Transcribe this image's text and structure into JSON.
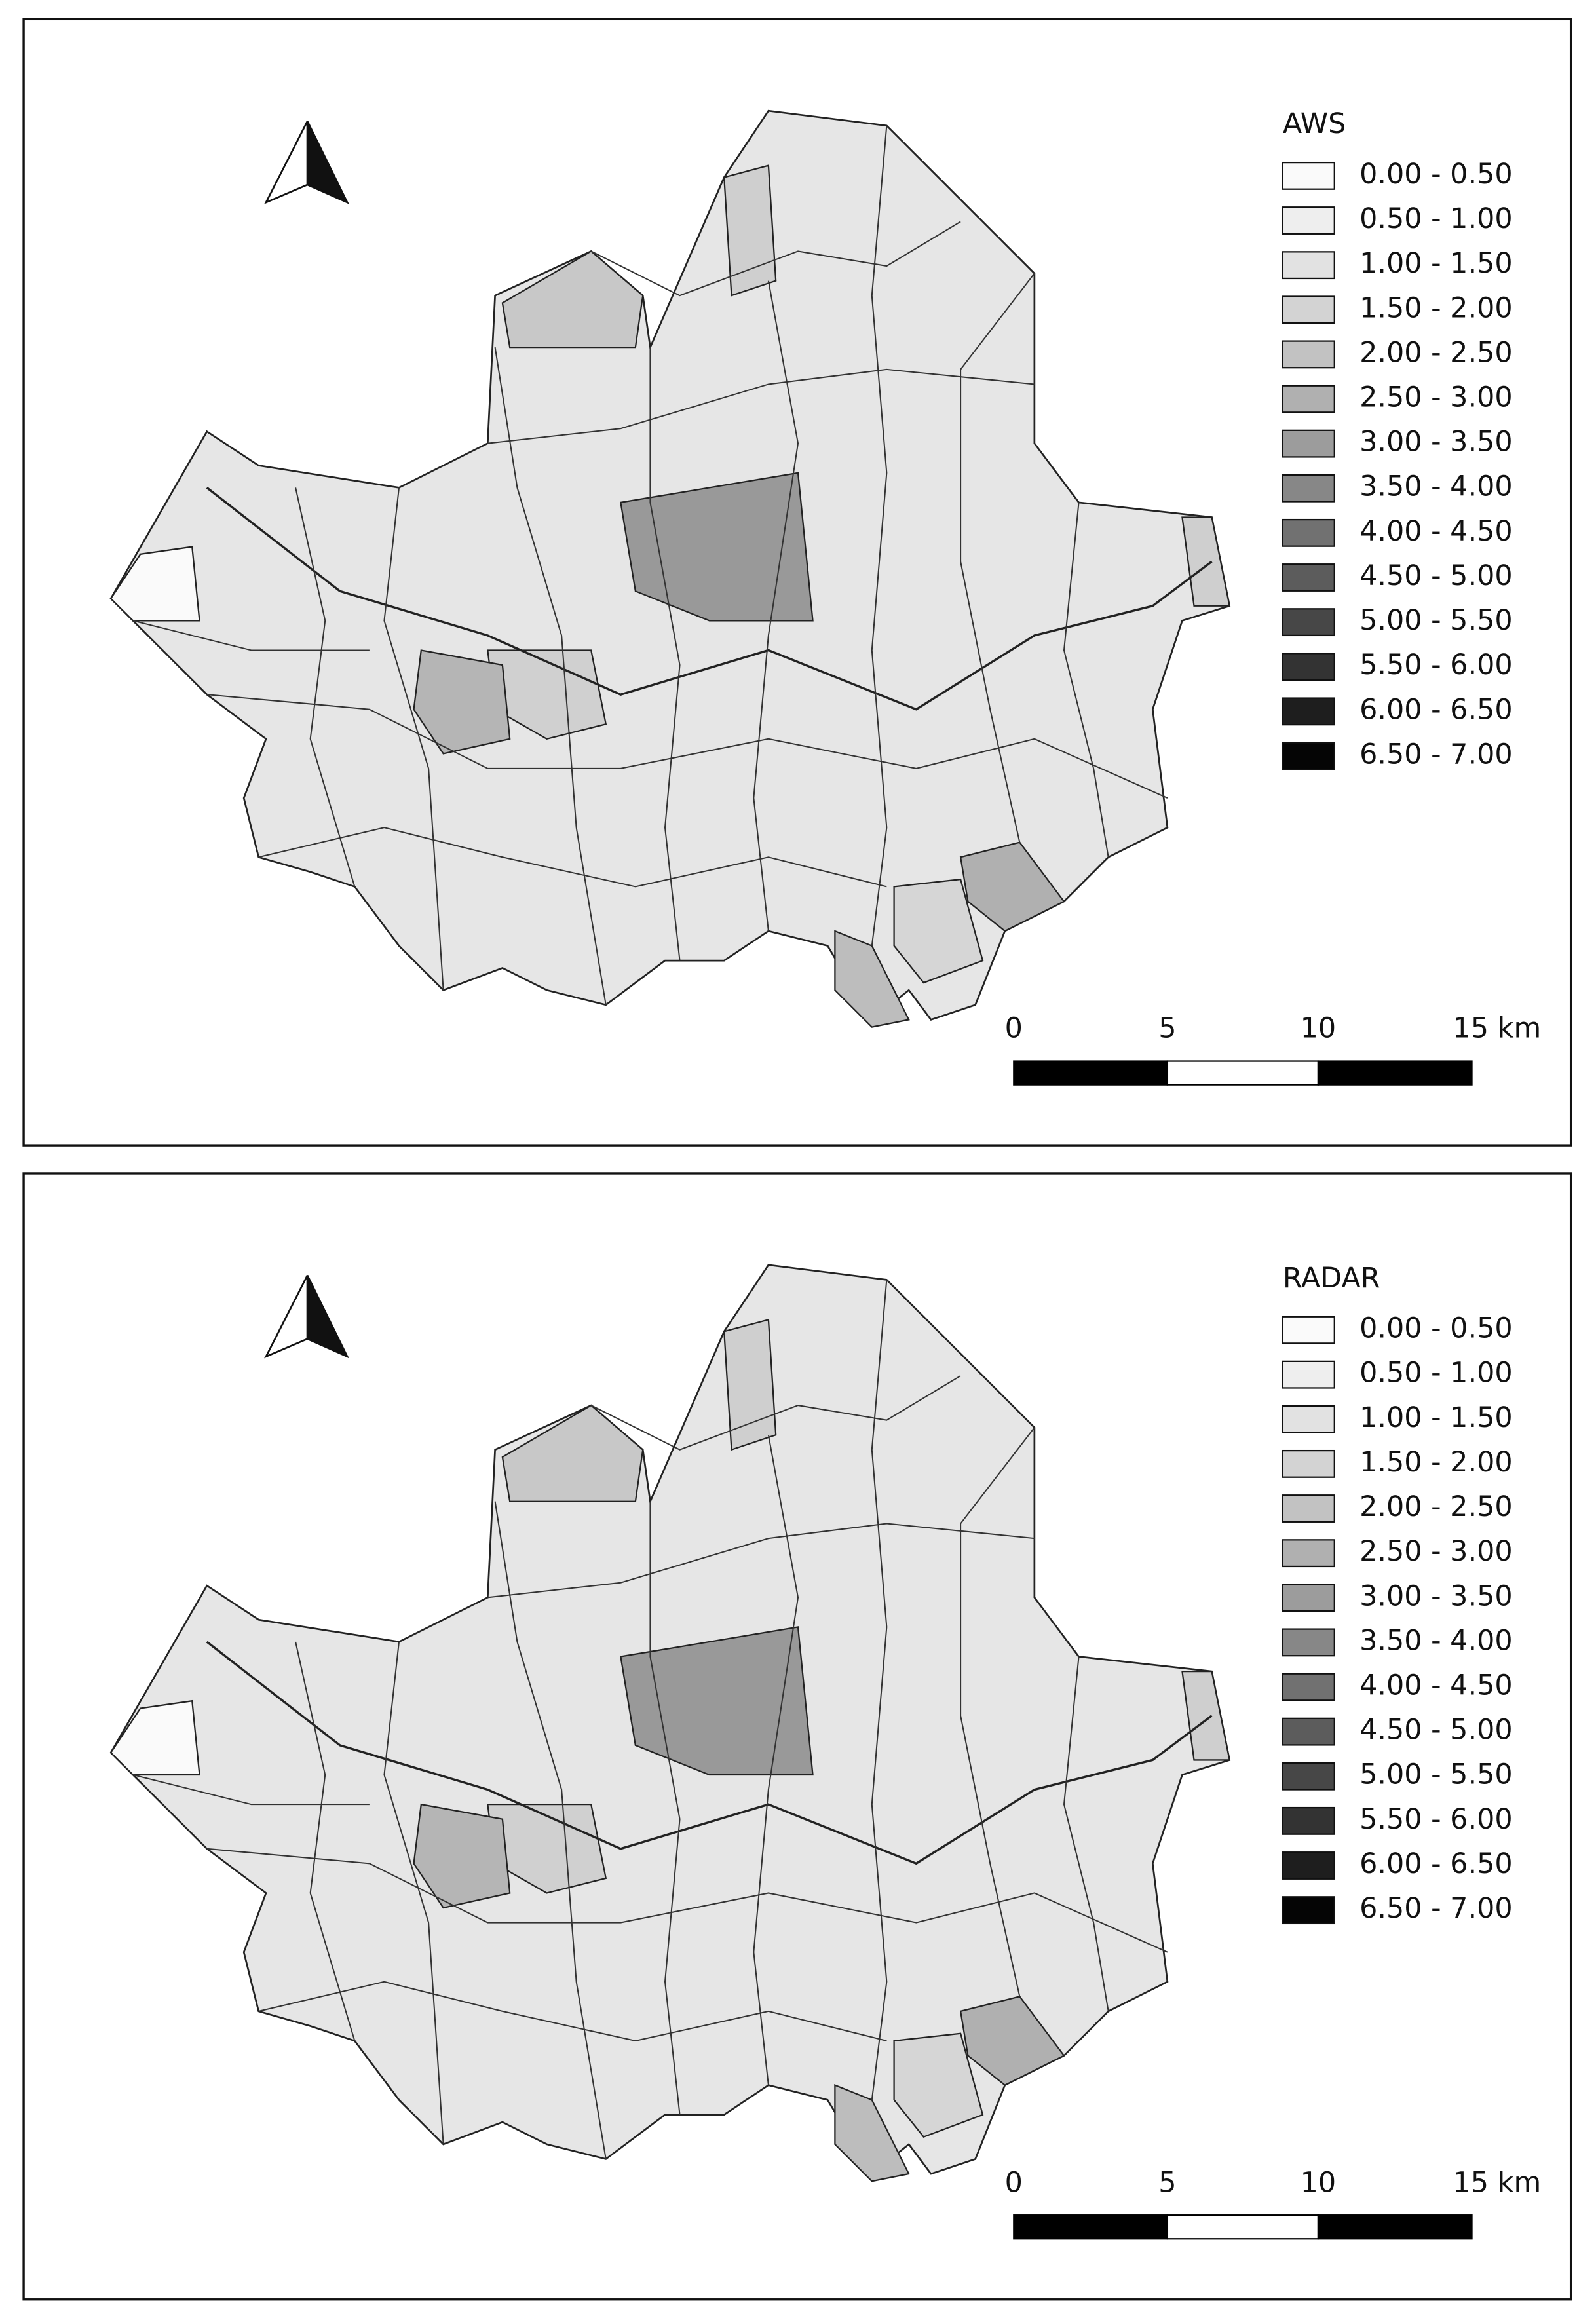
{
  "panels": [
    {
      "legend": {
        "title": "AWS",
        "labels": [
          "0.00 - 0.50",
          "0.50 - 1.00",
          "1.00 - 1.50",
          "1.50 - 2.00",
          "2.00 - 2.50",
          "2.50 - 3.00",
          "3.00 - 3.50",
          "3.50 - 4.00",
          "4.00 - 4.50",
          "4.50 - 5.00",
          "5.00 - 5.50",
          "5.50 - 6.00",
          "6.00 - 6.50",
          "6.50 - 7.00"
        ],
        "colors": [
          "#fafafa",
          "#eeeeee",
          "#e2e2e2",
          "#d3d3d3",
          "#c2c2c2",
          "#b0b0b0",
          "#9c9c9c",
          "#878787",
          "#717171",
          "#5c5c5c",
          "#474747",
          "#333333",
          "#1e1e1e",
          "#050505"
        ]
      },
      "scale_bar": {
        "labels": [
          "0",
          "5",
          "10",
          "15 km"
        ]
      }
    },
    {
      "legend": {
        "title": "RADAR",
        "labels": [
          "0.00 - 0.50",
          "0.50 - 1.00",
          "1.00 - 1.50",
          "1.50 - 2.00",
          "2.00 - 2.50",
          "2.50 - 3.00",
          "3.00 - 3.50",
          "3.50 - 4.00",
          "4.00 - 4.50",
          "4.50 - 5.00",
          "5.00 - 5.50",
          "5.50 - 6.00",
          "6.00 - 6.50",
          "6.50 - 7.00"
        ],
        "colors": [
          "#fafafa",
          "#eeeeee",
          "#e2e2e2",
          "#d3d3d3",
          "#c2c2c2",
          "#b0b0b0",
          "#9c9c9c",
          "#878787",
          "#717171",
          "#5c5c5c",
          "#474747",
          "#333333",
          "#1e1e1e",
          "#050505"
        ]
      },
      "scale_bar": {
        "labels": [
          "0",
          "5",
          "10",
          "15 km"
        ]
      }
    }
  ]
}
